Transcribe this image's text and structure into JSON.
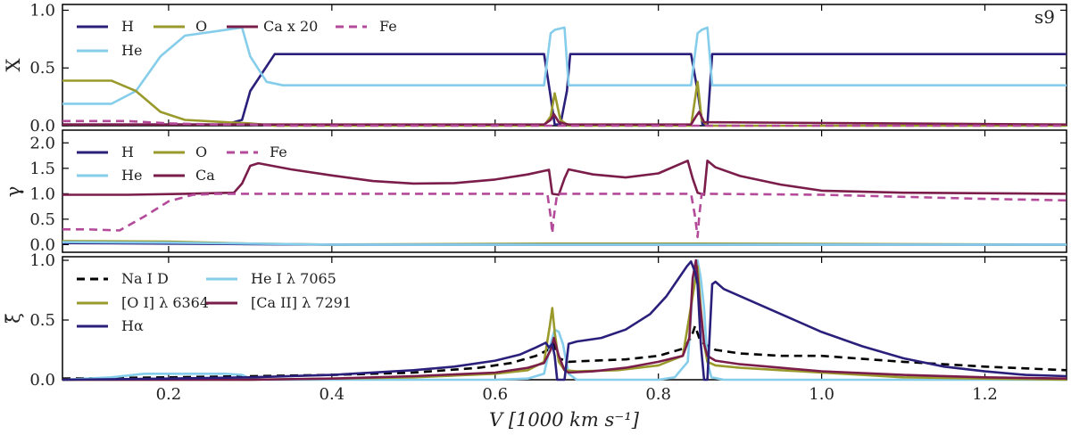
{
  "chart_data": [
    {
      "type": "line",
      "panel": "top",
      "ylabel": "X",
      "annotation": "s9",
      "xlim": [
        0.07,
        1.3
      ],
      "ylim": [
        0,
        1.05
      ],
      "yticks": [
        "0.0",
        "0.5",
        "1.0"
      ],
      "ytick_values": [
        0,
        0.5,
        1.0
      ],
      "legend": [
        "H",
        "O",
        "Ca x 20",
        "Fe",
        "He"
      ],
      "series": [
        {
          "name": "H",
          "color": "#2a1f7a",
          "dash": false,
          "x": [
            0.07,
            0.27,
            0.29,
            0.3,
            0.33,
            0.66,
            0.667,
            0.673,
            0.68,
            0.688,
            0.692,
            0.84,
            0.848,
            0.854,
            0.86,
            0.866,
            1.3
          ],
          "y": [
            0.01,
            0.01,
            0.05,
            0.3,
            0.62,
            0.62,
            0.3,
            0.01,
            0.01,
            0.3,
            0.62,
            0.62,
            0.3,
            0.01,
            0.01,
            0.62,
            0.62
          ]
        },
        {
          "name": "He",
          "color": "#85cdea",
          "dash": false,
          "x": [
            0.07,
            0.13,
            0.16,
            0.19,
            0.22,
            0.26,
            0.29,
            0.3,
            0.32,
            0.34,
            0.66,
            0.668,
            0.673,
            0.685,
            0.69,
            0.84,
            0.848,
            0.853,
            0.86,
            0.866,
            1.3
          ],
          "y": [
            0.19,
            0.19,
            0.3,
            0.6,
            0.78,
            0.82,
            0.85,
            0.6,
            0.38,
            0.35,
            0.35,
            0.8,
            0.83,
            0.85,
            0.35,
            0.35,
            0.8,
            0.83,
            0.85,
            0.35,
            0.35
          ]
        },
        {
          "name": "O",
          "color": "#9a9a2c",
          "dash": false,
          "x": [
            0.07,
            0.13,
            0.16,
            0.19,
            0.22,
            0.27,
            0.3,
            0.33,
            0.66,
            0.668,
            0.673,
            0.68,
            0.69,
            0.84,
            0.848,
            0.853,
            0.86,
            1.3
          ],
          "y": [
            0.39,
            0.39,
            0.3,
            0.12,
            0.05,
            0.03,
            0.02,
            0.0,
            0.0,
            0.08,
            0.28,
            0.05,
            0.0,
            0.0,
            0.38,
            0.05,
            0.0,
            0.0
          ]
        },
        {
          "name": "Ca x 20",
          "color": "#7a1d4a",
          "dash": false,
          "x": [
            0.07,
            0.66,
            0.668,
            0.672,
            0.678,
            0.69,
            0.84,
            0.846,
            0.85,
            0.856,
            1.3
          ],
          "y": [
            0.01,
            0.01,
            0.05,
            0.1,
            0.03,
            0.01,
            0.01,
            0.08,
            0.12,
            0.03,
            0.01
          ]
        },
        {
          "name": "Fe",
          "color": "#b44a9a",
          "dash": true,
          "x": [
            0.07,
            0.15,
            0.2,
            0.26,
            0.3,
            0.33,
            1.3
          ],
          "y": [
            0.04,
            0.04,
            0.02,
            0.01,
            0.01,
            0.0,
            0.0
          ]
        }
      ]
    },
    {
      "type": "line",
      "panel": "middle",
      "ylabel": "γ",
      "xlim": [
        0.07,
        1.3
      ],
      "ylim": [
        -0.15,
        2.25
      ],
      "yticks": [
        "0.0",
        "0.5",
        "1.0",
        "1.5",
        "2.0"
      ],
      "ytick_values": [
        0,
        0.5,
        1.0,
        1.5,
        2.0
      ],
      "legend": [
        "H",
        "O",
        "Fe",
        "He",
        "Ca"
      ],
      "series": [
        {
          "name": "Ca",
          "color": "#7a1d4a",
          "dash": false,
          "x": [
            0.07,
            0.15,
            0.22,
            0.28,
            0.29,
            0.3,
            0.31,
            0.35,
            0.4,
            0.45,
            0.5,
            0.55,
            0.6,
            0.64,
            0.666,
            0.67,
            0.678,
            0.685,
            0.69,
            0.72,
            0.76,
            0.8,
            0.836,
            0.842,
            0.848,
            0.856,
            0.86,
            0.87,
            0.9,
            0.95,
            1.0,
            1.1,
            1.2,
            1.3
          ],
          "y": [
            0.98,
            0.98,
            1.0,
            1.02,
            1.2,
            1.55,
            1.6,
            1.48,
            1.36,
            1.25,
            1.2,
            1.21,
            1.28,
            1.38,
            1.47,
            1.0,
            0.98,
            1.3,
            1.48,
            1.38,
            1.32,
            1.4,
            1.65,
            1.3,
            1.02,
            0.98,
            1.65,
            1.52,
            1.35,
            1.18,
            1.06,
            1.02,
            1.01,
            1.0
          ]
        },
        {
          "name": "Fe",
          "color": "#b44a9a",
          "dash": true,
          "x": [
            0.07,
            0.1,
            0.14,
            0.17,
            0.2,
            0.23,
            0.26,
            0.3,
            0.664,
            0.668,
            0.67,
            0.672,
            0.676,
            0.84,
            0.845,
            0.848,
            0.85,
            0.853,
            1.0,
            1.1,
            1.2,
            1.3
          ],
          "y": [
            0.3,
            0.3,
            0.28,
            0.55,
            0.85,
            0.98,
            1.0,
            1.0,
            1.0,
            0.55,
            0.22,
            0.55,
            1.0,
            1.0,
            0.55,
            0.15,
            0.55,
            1.0,
            0.98,
            0.94,
            0.9,
            0.87
          ]
        },
        {
          "name": "O",
          "color": "#9a9a2c",
          "dash": false,
          "x": [
            0.07,
            0.2,
            0.3,
            0.4,
            0.672,
            0.848,
            1.3
          ],
          "y": [
            0.07,
            0.06,
            0.02,
            0.0,
            0.02,
            0.02,
            0.0
          ]
        },
        {
          "name": "H",
          "color": "#2a1f7a",
          "dash": false,
          "x": [
            0.07,
            0.2,
            0.3,
            0.4,
            1.3
          ],
          "y": [
            0.03,
            0.02,
            0.01,
            0.0,
            0.0
          ]
        },
        {
          "name": "He",
          "color": "#85cdea",
          "dash": false,
          "x": [
            0.07,
            0.2,
            0.3,
            0.4,
            1.3
          ],
          "y": [
            0.05,
            0.04,
            0.02,
            0.0,
            0.0
          ]
        }
      ]
    },
    {
      "type": "line",
      "panel": "bottom",
      "ylabel": "ξ̄",
      "xlabel": "V [1000 km s⁻¹]",
      "xlim": [
        0.07,
        1.3
      ],
      "ylim": [
        0,
        1.03
      ],
      "xticks": [
        "0.2",
        "0.4",
        "0.6",
        "0.8",
        "1.0",
        "1.2"
      ],
      "xtick_values": [
        0.2,
        0.4,
        0.6,
        0.8,
        1.0,
        1.2
      ],
      "yticks": [
        "0.0",
        "0.5",
        "1.0"
      ],
      "ytick_values": [
        0,
        0.5,
        1.0
      ],
      "legend": [
        "Na I D",
        "He I λ 7065",
        "[O I] λ 6364",
        "[Ca II] λ 7291",
        "Hα"
      ],
      "series": [
        {
          "name": "Na I D",
          "color": "#000000",
          "dash": true,
          "x": [
            0.07,
            0.2,
            0.3,
            0.4,
            0.5,
            0.58,
            0.62,
            0.65,
            0.665,
            0.672,
            0.678,
            0.69,
            0.72,
            0.76,
            0.8,
            0.83,
            0.84,
            0.845,
            0.85,
            0.856,
            0.87,
            0.9,
            0.95,
            1.0,
            1.1,
            1.2,
            1.3
          ],
          "y": [
            0.01,
            0.02,
            0.03,
            0.04,
            0.06,
            0.1,
            0.14,
            0.2,
            0.25,
            0.3,
            0.18,
            0.15,
            0.16,
            0.17,
            0.2,
            0.26,
            0.35,
            0.45,
            0.35,
            0.3,
            0.25,
            0.22,
            0.2,
            0.2,
            0.15,
            0.11,
            0.08
          ]
        },
        {
          "name": "He I λ 7065",
          "color": "#85cdea",
          "dash": false,
          "x": [
            0.07,
            0.13,
            0.17,
            0.2,
            0.24,
            0.27,
            0.29,
            0.3,
            0.32,
            0.6,
            0.64,
            0.66,
            0.668,
            0.673,
            0.678,
            0.683,
            0.69,
            0.7,
            0.8,
            0.82,
            0.836,
            0.842,
            0.848,
            0.852,
            0.856,
            0.86,
            0.865,
            0.88,
            1.3
          ],
          "y": [
            0.0,
            0.02,
            0.05,
            0.05,
            0.05,
            0.05,
            0.04,
            0.01,
            0.0,
            0.0,
            0.01,
            0.05,
            0.3,
            0.42,
            0.4,
            0.3,
            0.05,
            0.0,
            0.0,
            0.02,
            0.15,
            0.75,
            1.0,
            0.85,
            0.6,
            0.15,
            0.02,
            0.0,
            0.0
          ]
        },
        {
          "name": "[O I] λ 6364",
          "color": "#9a9a2c",
          "dash": false,
          "x": [
            0.07,
            0.2,
            0.3,
            0.5,
            0.6,
            0.64,
            0.66,
            0.667,
            0.67,
            0.673,
            0.678,
            0.685,
            0.7,
            0.75,
            0.8,
            0.83,
            0.842,
            0.848,
            0.852,
            0.856,
            0.86,
            0.87,
            0.9,
            0.95,
            1.0,
            1.05,
            1.1,
            1.2,
            1.3
          ],
          "y": [
            0.0,
            0.0,
            0.0,
            0.02,
            0.05,
            0.08,
            0.15,
            0.45,
            0.6,
            0.4,
            0.15,
            0.08,
            0.07,
            0.08,
            0.12,
            0.2,
            0.7,
            0.95,
            0.6,
            0.3,
            0.15,
            0.12,
            0.1,
            0.08,
            0.06,
            0.04,
            0.02,
            0.01,
            0.0
          ]
        },
        {
          "name": "[Ca II] λ 7291",
          "color": "#7a1d4a",
          "dash": false,
          "x": [
            0.07,
            0.2,
            0.3,
            0.4,
            0.5,
            0.6,
            0.64,
            0.66,
            0.668,
            0.672,
            0.678,
            0.685,
            0.69,
            0.72,
            0.76,
            0.8,
            0.83,
            0.838,
            0.842,
            0.846,
            0.85,
            0.856,
            0.86,
            0.87,
            0.9,
            0.95,
            1.0,
            1.1,
            1.2,
            1.3
          ],
          "y": [
            0.0,
            0.0,
            0.0,
            0.01,
            0.03,
            0.06,
            0.1,
            0.14,
            0.25,
            0.35,
            0.2,
            0.08,
            0.06,
            0.07,
            0.1,
            0.15,
            0.2,
            0.35,
            0.85,
            1.0,
            0.7,
            0.3,
            0.2,
            0.16,
            0.13,
            0.1,
            0.07,
            0.04,
            0.02,
            0.01
          ]
        },
        {
          "name": "Hα",
          "color": "#2a1f7a",
          "dash": false,
          "x": [
            0.07,
            0.2,
            0.3,
            0.4,
            0.5,
            0.55,
            0.6,
            0.63,
            0.65,
            0.662,
            0.666,
            0.67,
            0.673,
            0.676,
            0.68,
            0.685,
            0.69,
            0.7,
            0.73,
            0.76,
            0.79,
            0.81,
            0.825,
            0.835,
            0.84,
            0.845,
            0.848,
            0.852,
            0.856,
            0.86,
            0.866,
            0.87,
            0.88,
            0.9,
            0.95,
            1.0,
            1.05,
            1.1,
            1.15,
            1.2,
            1.25,
            1.3
          ],
          "y": [
            0.0,
            0.01,
            0.02,
            0.04,
            0.08,
            0.11,
            0.16,
            0.21,
            0.27,
            0.31,
            0.27,
            0.3,
            0.2,
            0.0,
            0.0,
            0.0,
            0.3,
            0.32,
            0.35,
            0.42,
            0.55,
            0.7,
            0.85,
            0.95,
            0.99,
            0.9,
            0.8,
            0.3,
            0.0,
            0.0,
            0.8,
            0.82,
            0.76,
            0.7,
            0.55,
            0.4,
            0.28,
            0.18,
            0.11,
            0.07,
            0.04,
            0.03
          ]
        }
      ]
    }
  ]
}
